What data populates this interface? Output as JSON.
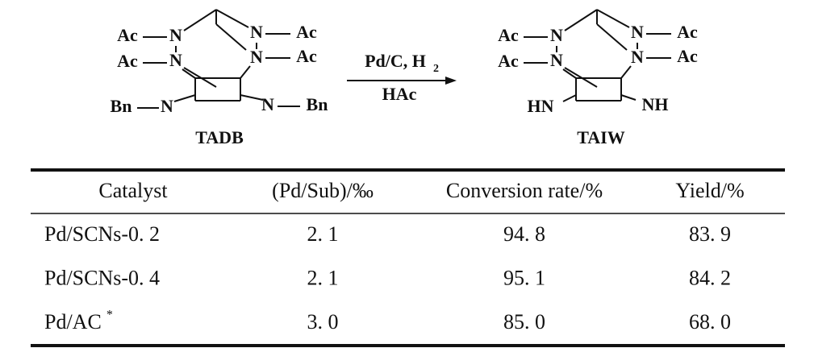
{
  "scheme": {
    "reactant": {
      "atoms": [
        "Ac",
        "N",
        "N",
        "Ac",
        "Ac",
        "N",
        "N",
        "Ac",
        "Bn",
        "N",
        "N",
        "Bn"
      ],
      "name": "TADB"
    },
    "reagents": {
      "above": "Pd/C, H",
      "subscript": "2",
      "below": "HAc"
    },
    "product": {
      "atoms": [
        "Ac",
        "N",
        "N",
        "Ac",
        "Ac",
        "N",
        "N",
        "Ac",
        "HN",
        "NH"
      ],
      "name": "TAIW"
    }
  },
  "table": {
    "header": [
      "Catalyst",
      "(Pd/Sub)/‰",
      "Conversion rate/%",
      "Yield/%"
    ],
    "rows": [
      {
        "cells": [
          "Pd/SCNs-0. 2",
          "2. 1",
          "94. 8",
          "83. 9"
        ]
      },
      {
        "cells": [
          "Pd/SCNs-0. 4",
          "2. 1",
          "95. 1",
          "84. 2"
        ]
      },
      {
        "cells": [
          "Pd/AC",
          "3. 0",
          "85. 0",
          "68. 0"
        ],
        "mark": "*"
      }
    ]
  }
}
